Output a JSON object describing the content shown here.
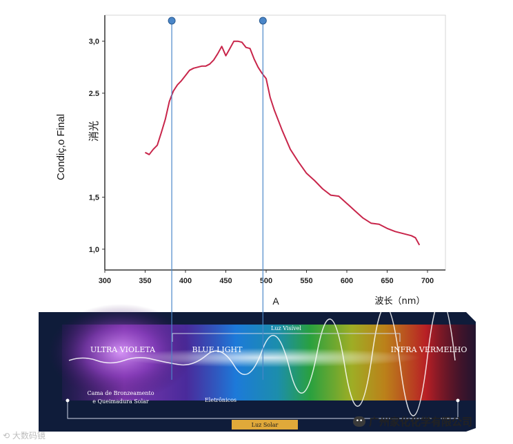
{
  "chart_data": {
    "type": "line",
    "title": "",
    "xlabel_extra": "A",
    "xlabel": "波长（nm）",
    "ylabel": "Condiç,o Final",
    "ylabel_secondary": "消光",
    "xlim": [
      300,
      700
    ],
    "ylim": [
      0.8,
      3.25
    ],
    "x_ticks": [
      300,
      350,
      400,
      450,
      500,
      550,
      600,
      650,
      700
    ],
    "x_tick_labels": [
      "300",
      "350",
      "400",
      "450",
      "500",
      "550",
      "600",
      "650",
      "700"
    ],
    "y_ticks": [
      1.0,
      1.5,
      2.5,
      3.0
    ],
    "y_tick_labels": [
      "1,0",
      "1,5",
      "2.5",
      "3,0"
    ],
    "line_color": "#c8254a",
    "series": [
      {
        "x": [
          350,
          355,
          360,
          365,
          370,
          375,
          380,
          385,
          390,
          395,
          400,
          405,
          410,
          415,
          420,
          425,
          430,
          435,
          440,
          445,
          450,
          455,
          460,
          465,
          470,
          475,
          480,
          485,
          490,
          495,
          500,
          505,
          510,
          520,
          530,
          540,
          550,
          560,
          570,
          580,
          590,
          600,
          610,
          620,
          630,
          640,
          650,
          660,
          670,
          680,
          685,
          690
        ],
        "y": [
          1.93,
          1.91,
          1.96,
          2.0,
          2.12,
          2.25,
          2.42,
          2.52,
          2.58,
          2.62,
          2.67,
          2.72,
          2.74,
          2.75,
          2.76,
          2.76,
          2.78,
          2.82,
          2.88,
          2.95,
          2.86,
          2.93,
          3.0,
          3.0,
          2.99,
          2.94,
          2.93,
          2.83,
          2.75,
          2.69,
          2.64,
          2.46,
          2.34,
          2.14,
          1.96,
          1.84,
          1.73,
          1.66,
          1.58,
          1.52,
          1.51,
          1.44,
          1.37,
          1.3,
          1.25,
          1.24,
          1.2,
          1.17,
          1.15,
          1.13,
          1.11,
          1.04
        ]
      }
    ],
    "markers": [
      {
        "x": 383
      },
      {
        "x": 496
      }
    ],
    "marker_color": "#4a86c8"
  },
  "banner": {
    "luz_visivel": "Luz Visível",
    "ultra_violeta": "ULTRA VIOLETA",
    "blue_light": "BLUE LIGHT",
    "infra_vermelho": "INFRA VERMELHO",
    "cama_line1": "Cama de Bronzeamento",
    "cama_line2": "e Queimadura Solar",
    "eletronicos": "Eletrônicos",
    "luz_solar": "Luz Solar"
  },
  "footer": {
    "watermark_left": "大数码镜",
    "company": "广州家化化学有限公司"
  }
}
